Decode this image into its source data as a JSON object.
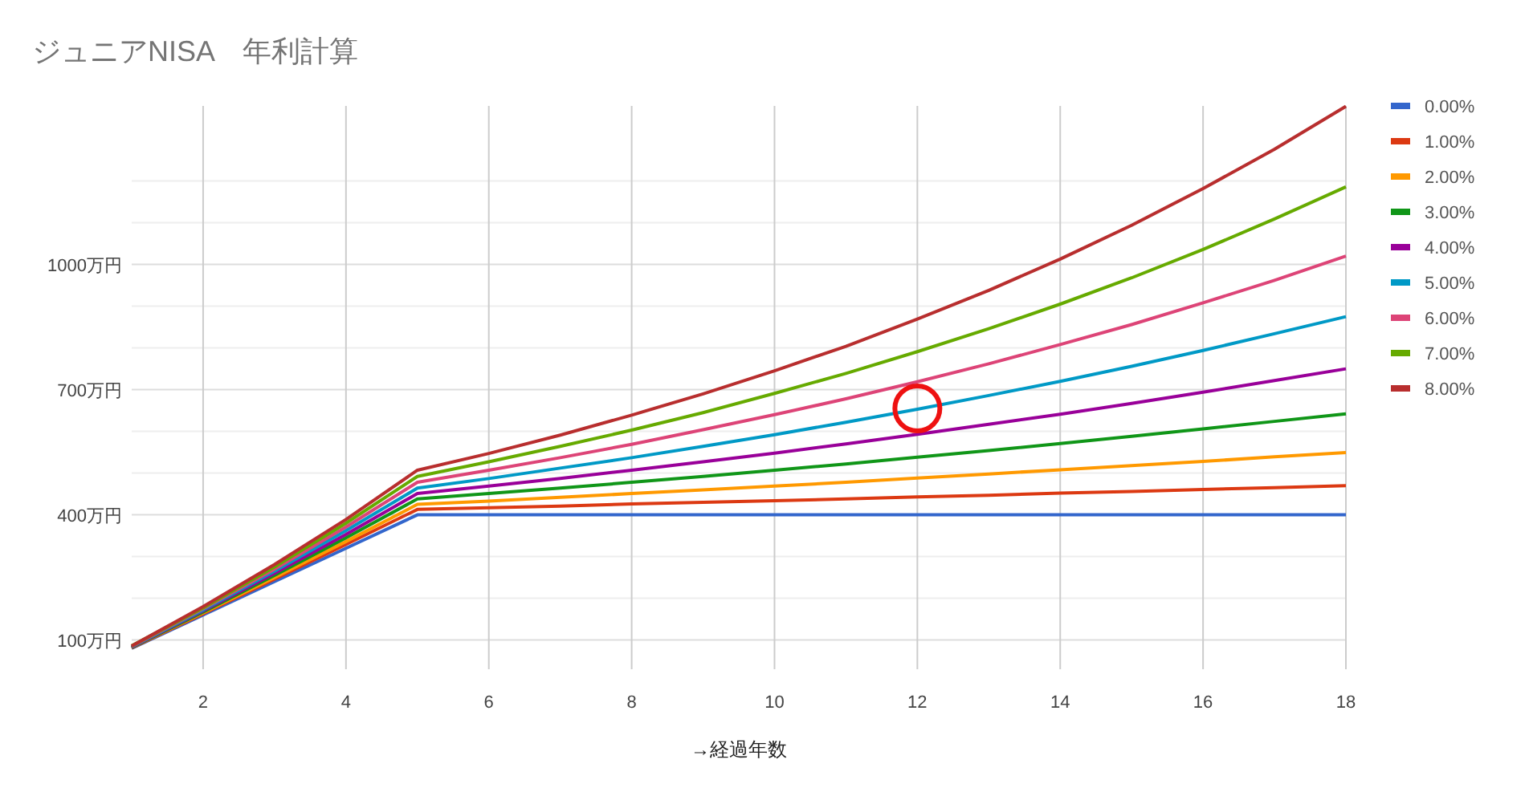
{
  "chart_data": {
    "type": "line",
    "title": "ジュニアNISA　年利計算",
    "xlabel": "→経過年数",
    "x": [
      1,
      2,
      3,
      4,
      5,
      6,
      7,
      8,
      9,
      10,
      11,
      12,
      13,
      14,
      15,
      16,
      17,
      18
    ],
    "xlim": [
      1,
      18
    ],
    "xticks": [
      2,
      4,
      6,
      8,
      10,
      12,
      14,
      16,
      18
    ],
    "ylim": [
      30,
      1380
    ],
    "yticks": [
      {
        "value": 100,
        "label": "100万円"
      },
      {
        "value": 200,
        "label": null
      },
      {
        "value": 300,
        "label": null
      },
      {
        "value": 400,
        "label": "400万円"
      },
      {
        "value": 500,
        "label": null
      },
      {
        "value": 600,
        "label": null
      },
      {
        "value": 700,
        "label": "700万円"
      },
      {
        "value": 800,
        "label": null
      },
      {
        "value": 900,
        "label": null
      },
      {
        "value": 1000,
        "label": "1000万円"
      },
      {
        "value": 1100,
        "label": null
      },
      {
        "value": 1200,
        "label": null
      }
    ],
    "grid": true,
    "legend": "top right",
    "marker": "none",
    "line_style": "solid",
    "series": [
      {
        "name": "0.00%",
        "color": "#3366cc",
        "values": [
          80,
          160,
          240,
          320,
          400,
          400,
          400,
          400,
          400,
          400,
          400,
          400,
          400,
          400,
          400,
          400,
          400,
          400
        ]
      },
      {
        "name": "1.00%",
        "color": "#dc3912",
        "values": [
          81,
          163,
          246,
          329,
          413,
          417,
          421,
          426,
          430,
          434,
          438,
          443,
          447,
          452,
          456,
          461,
          465,
          470
        ]
      },
      {
        "name": "2.00%",
        "color": "#ff9900",
        "values": [
          82,
          165,
          250,
          336,
          425,
          433,
          442,
          451,
          460,
          469,
          478,
          488,
          498,
          508,
          518,
          528,
          539,
          549
        ]
      },
      {
        "name": "3.00%",
        "color": "#109618",
        "values": [
          82,
          167,
          255,
          345,
          438,
          451,
          464,
          478,
          492,
          507,
          522,
          538,
          554,
          571,
          588,
          606,
          624,
          642
        ]
      },
      {
        "name": "4.00%",
        "color": "#990099",
        "values": [
          83,
          170,
          260,
          353,
          451,
          469,
          487,
          507,
          527,
          548,
          570,
          593,
          617,
          641,
          667,
          694,
          722,
          750
        ]
      },
      {
        "name": "5.00%",
        "color": "#0099c6",
        "values": [
          84,
          172,
          265,
          362,
          464,
          487,
          512,
          537,
          564,
          592,
          622,
          653,
          686,
          720,
          756,
          794,
          834,
          875
        ]
      },
      {
        "name": "6.00%",
        "color": "#dd4477",
        "values": [
          85,
          175,
          270,
          371,
          478,
          507,
          537,
          569,
          604,
          640,
          678,
          719,
          762,
          808,
          856,
          908,
          962,
          1020
        ]
      },
      {
        "name": "7.00%",
        "color": "#66aa00",
        "values": [
          86,
          177,
          275,
          380,
          492,
          527,
          564,
          603,
          645,
          691,
          739,
          791,
          846,
          905,
          968,
          1036,
          1109,
          1186
        ]
      },
      {
        "name": "8.00%",
        "color": "#b82e2e",
        "values": [
          86,
          180,
          281,
          389,
          507,
          547,
          591,
          639,
          690,
          745,
          804,
          869,
          938,
          1013,
          1094,
          1182,
          1276,
          1379
        ]
      }
    ]
  }
}
